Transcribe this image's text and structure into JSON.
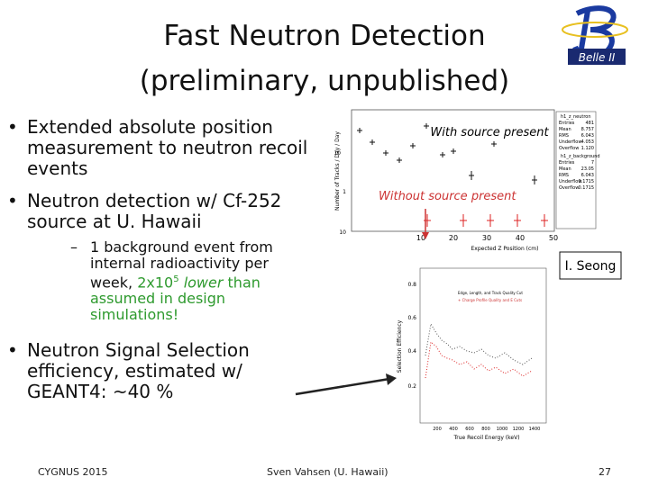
{
  "title": {
    "line1": "Fast Neutron Detection",
    "line2": "(preliminary, unpublished)"
  },
  "logo": {
    "text": "Belle II"
  },
  "bullets": [
    "Extended absolute position measurement to neutron recoil events",
    "Neutron detection w/ Cf-252 source at U. Hawaii"
  ],
  "sub_bullet": {
    "part1": "1 background event from internal radioactivity per week, ",
    "part2": "2x10",
    "sup": "5",
    "part3": " lower",
    "part4": " than assumed in design simulations!"
  },
  "bullet3": "Neutron Signal Selection efficiency, estimated w/ GEANT4:  ~40 %",
  "plot1": {
    "annotation_source": "With source present",
    "annotation_nosource": "Without source present",
    "x_label": "Expected Z Position (cm)",
    "y_label": "Number of Tracks / Day / Day",
    "xticks": [
      "10",
      "20",
      "30",
      "40",
      "50"
    ],
    "yticks": [
      "10",
      "1",
      "10"
    ],
    "stats_title1": "h1_z_neutron",
    "stats1": [
      [
        "Entries",
        "481"
      ],
      [
        "Mean",
        "8.757"
      ],
      [
        "RMS",
        "6.043"
      ],
      [
        "Underflow",
        "4.053"
      ],
      [
        "Overflow",
        "1.120"
      ]
    ],
    "stats_title2": "h1_z_background",
    "stats2": [
      [
        "Entries",
        "7"
      ],
      [
        "Mean",
        "23.05"
      ],
      [
        "RMS",
        "6.043"
      ],
      [
        "Underflow",
        "0.1715"
      ],
      [
        "Overflow",
        "0.1715"
      ]
    ]
  },
  "credit": "I. Seong",
  "plot2": {
    "x_label": "True Recoil Energy (keV)",
    "y_label": "Selection Efficiency",
    "yticks": [
      "0.8",
      "0.6",
      "0.4",
      "0.2"
    ],
    "xticks": [
      "200",
      "400",
      "600",
      "800",
      "1000",
      "1200",
      "1400"
    ],
    "legend": [
      "Edge, Length, and Track Quality Cut",
      "+ Charge Profile Quality and E Cuts"
    ]
  },
  "footer": {
    "left": "CYGNUS 2015",
    "center": "Sven Vahsen (U. Hawaii)",
    "page": "27"
  }
}
